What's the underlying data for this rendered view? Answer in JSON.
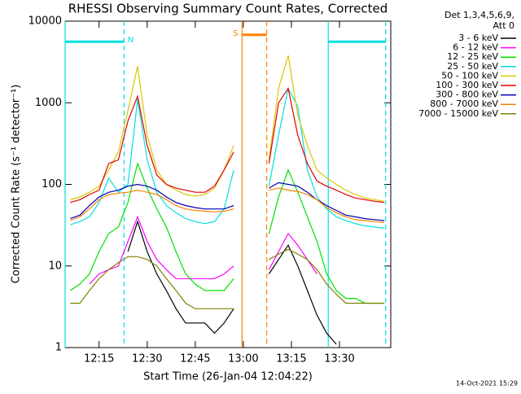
{
  "chart_data": {
    "type": "line",
    "title": "RHESSI Observing Summary Count Rates, Corrected",
    "xlabel": "Start Time (26-Jan-04 12:04:22)",
    "ylabel": "Corrected Count Rate (s⁻¹ detector⁻¹)",
    "legend_header": [
      "Det 1,3,4,5,6,9,",
      "Att 0"
    ],
    "footer": "14-Oct-2021 15:29",
    "log_y": true,
    "legend": "right",
    "xlim": [
      724.4,
      826
    ],
    "ylim": [
      1,
      10000
    ],
    "yticks": [
      1,
      10,
      100,
      1000,
      10000
    ],
    "xticks": [
      {
        "value": 735,
        "label": "12:15"
      },
      {
        "value": 750,
        "label": "12:30"
      },
      {
        "value": 765,
        "label": "12:45"
      },
      {
        "value": 780,
        "label": "13:00"
      },
      {
        "value": 795,
        "label": "13:15"
      },
      {
        "value": 810,
        "label": "13:30"
      }
    ],
    "x": [
      726,
      729,
      732,
      735,
      738,
      741,
      744,
      747,
      750,
      753,
      756,
      759,
      762,
      765,
      768,
      771,
      774,
      777,
      782,
      788,
      791,
      794,
      797,
      800,
      803,
      806,
      809,
      812,
      815,
      818,
      821,
      824
    ],
    "series": [
      {
        "name": "3 - 6 keV",
        "color": "#000000",
        "values": [
          null,
          null,
          null,
          null,
          null,
          null,
          15,
          35,
          15,
          8,
          5,
          3,
          2,
          2,
          2,
          1.5,
          2,
          3,
          null,
          8,
          12,
          18,
          10,
          5,
          2.5,
          1.5,
          1.1,
          null,
          null,
          null,
          null,
          null
        ]
      },
      {
        "name": "6 - 12 keV",
        "color": "#ff00ff",
        "values": [
          null,
          null,
          6,
          8,
          9,
          10,
          20,
          40,
          20,
          12,
          9,
          7,
          7,
          7,
          7,
          7,
          8,
          10,
          null,
          9,
          15,
          25,
          18,
          12,
          8,
          null,
          null,
          null,
          null,
          null,
          null,
          null
        ]
      },
      {
        "name": "12 - 25 keV",
        "color": "#00e000",
        "values": [
          5,
          6,
          8,
          15,
          25,
          30,
          60,
          180,
          90,
          50,
          30,
          15,
          8,
          6,
          5,
          5,
          5,
          7,
          null,
          25,
          70,
          150,
          80,
          40,
          20,
          8,
          5,
          4,
          4,
          3.5,
          3.5,
          3.5
        ]
      },
      {
        "name": "25 - 50 keV",
        "color": "#00e0e0",
        "values": [
          32,
          35,
          40,
          60,
          120,
          80,
          100,
          1100,
          200,
          80,
          55,
          45,
          38,
          35,
          33,
          35,
          50,
          150,
          null,
          95,
          400,
          1500,
          900,
          150,
          70,
          50,
          40,
          36,
          33,
          31,
          30,
          29
        ]
      },
      {
        "name": "50 - 100 keV",
        "color": "#d8c800",
        "values": [
          65,
          70,
          80,
          95,
          150,
          250,
          800,
          2800,
          400,
          150,
          100,
          85,
          75,
          72,
          75,
          90,
          150,
          300,
          null,
          200,
          1500,
          3800,
          700,
          300,
          150,
          120,
          100,
          85,
          75,
          68,
          65,
          62
        ]
      },
      {
        "name": "100 - 300 keV",
        "color": "#e00000",
        "values": [
          60,
          65,
          75,
          85,
          180,
          200,
          600,
          1200,
          300,
          130,
          100,
          90,
          85,
          80,
          80,
          95,
          150,
          250,
          null,
          180,
          1000,
          1500,
          400,
          180,
          110,
          95,
          85,
          75,
          68,
          65,
          62,
          60
        ]
      },
      {
        "name": "300 - 800 keV",
        "color": "#0000b0",
        "values": [
          38,
          42,
          55,
          70,
          80,
          85,
          95,
          100,
          95,
          85,
          70,
          60,
          55,
          52,
          50,
          50,
          50,
          55,
          null,
          90,
          105,
          100,
          95,
          80,
          65,
          55,
          48,
          42,
          40,
          38,
          37,
          36
        ]
      },
      {
        "name": "800 - 7000 keV",
        "color": "#ff8000",
        "values": [
          36,
          40,
          50,
          65,
          75,
          78,
          80,
          85,
          80,
          75,
          65,
          55,
          50,
          48,
          47,
          46,
          47,
          50,
          null,
          85,
          90,
          85,
          82,
          75,
          65,
          52,
          45,
          40,
          37,
          36,
          35,
          34
        ]
      },
      {
        "name": "7000 - 15000 keV",
        "color": "#808000",
        "values": [
          3.5,
          3.5,
          5,
          7,
          9,
          11,
          13,
          13,
          12,
          10,
          7,
          5,
          3.5,
          3,
          3,
          3,
          3,
          3,
          null,
          12,
          14,
          16,
          14,
          12,
          9,
          6,
          4.5,
          3.5,
          3.5,
          3.5,
          3.5,
          3.5
        ]
      }
    ],
    "intervals": [
      {
        "label": "N",
        "color": "#00e0e0",
        "start": 724.4,
        "end": 742.8,
        "level": 5600
      },
      {
        "label": "S",
        "color": "#ff8000",
        "start": 779.6,
        "end": 787.3,
        "level": 6800
      },
      {
        "label": "",
        "color": "#00e0e0",
        "start": 806.5,
        "end": 824.4,
        "level": 5600
      }
    ]
  }
}
